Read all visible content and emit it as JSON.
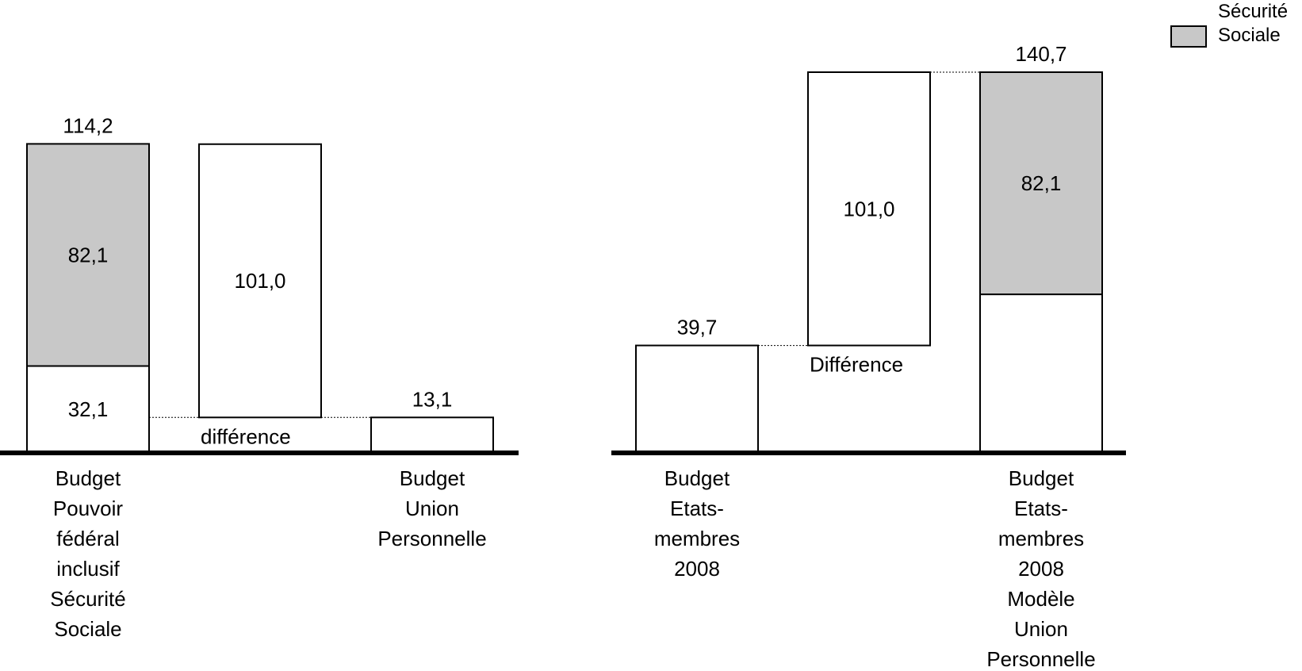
{
  "legend": {
    "label_line1": "Sécurité",
    "label_line2": "Sociale",
    "color": "#c8c8c8"
  },
  "chart_data": [
    {
      "type": "bar",
      "subtype": "waterfall",
      "ylim": [
        0,
        140.7
      ],
      "bars": [
        {
          "label_lines": [
            "Budget",
            "Pouvoir",
            "fédéral",
            "inclusif",
            "Sécurité",
            "Sociale"
          ],
          "segments": [
            {
              "value": 32.1,
              "label": "32,1",
              "fill": "#ffffff"
            },
            {
              "value": 82.1,
              "label": "82,1",
              "fill": "#c8c8c8",
              "series": "Sécurité Sociale"
            }
          ],
          "total_label": "114,2"
        },
        {
          "label_lines": [],
          "floating": true,
          "base": 13.1,
          "segments": [
            {
              "value": 101.0,
              "label": "101,0",
              "fill": "#ffffff"
            }
          ],
          "annotation": "différence"
        },
        {
          "label_lines": [
            "Budget",
            "Union",
            "Personnelle"
          ],
          "segments": [
            {
              "value": 13.1,
              "label": "",
              "fill": "#ffffff"
            }
          ],
          "total_label": "13,1"
        }
      ]
    },
    {
      "type": "bar",
      "subtype": "waterfall",
      "ylim": [
        0,
        140.7
      ],
      "bars": [
        {
          "label_lines": [
            "Budget",
            "Etats-",
            "membres",
            "2008"
          ],
          "segments": [
            {
              "value": 39.7,
              "label": "",
              "fill": "#ffffff"
            }
          ],
          "total_label": "39,7"
        },
        {
          "label_lines": [],
          "floating": true,
          "base": 39.7,
          "segments": [
            {
              "value": 101.0,
              "label": "101,0",
              "fill": "#ffffff"
            }
          ],
          "annotation": "Différence"
        },
        {
          "label_lines": [
            "Budget",
            "Etats-",
            "membres",
            "2008",
            "Modèle",
            "Union",
            "Personnelle"
          ],
          "segments": [
            {
              "value": 58.6,
              "label": "",
              "fill": "#ffffff"
            },
            {
              "value": 82.1,
              "label": "82,1",
              "fill": "#c8c8c8",
              "series": "Sécurité Sociale"
            }
          ],
          "total_label": "140,7"
        }
      ]
    }
  ]
}
